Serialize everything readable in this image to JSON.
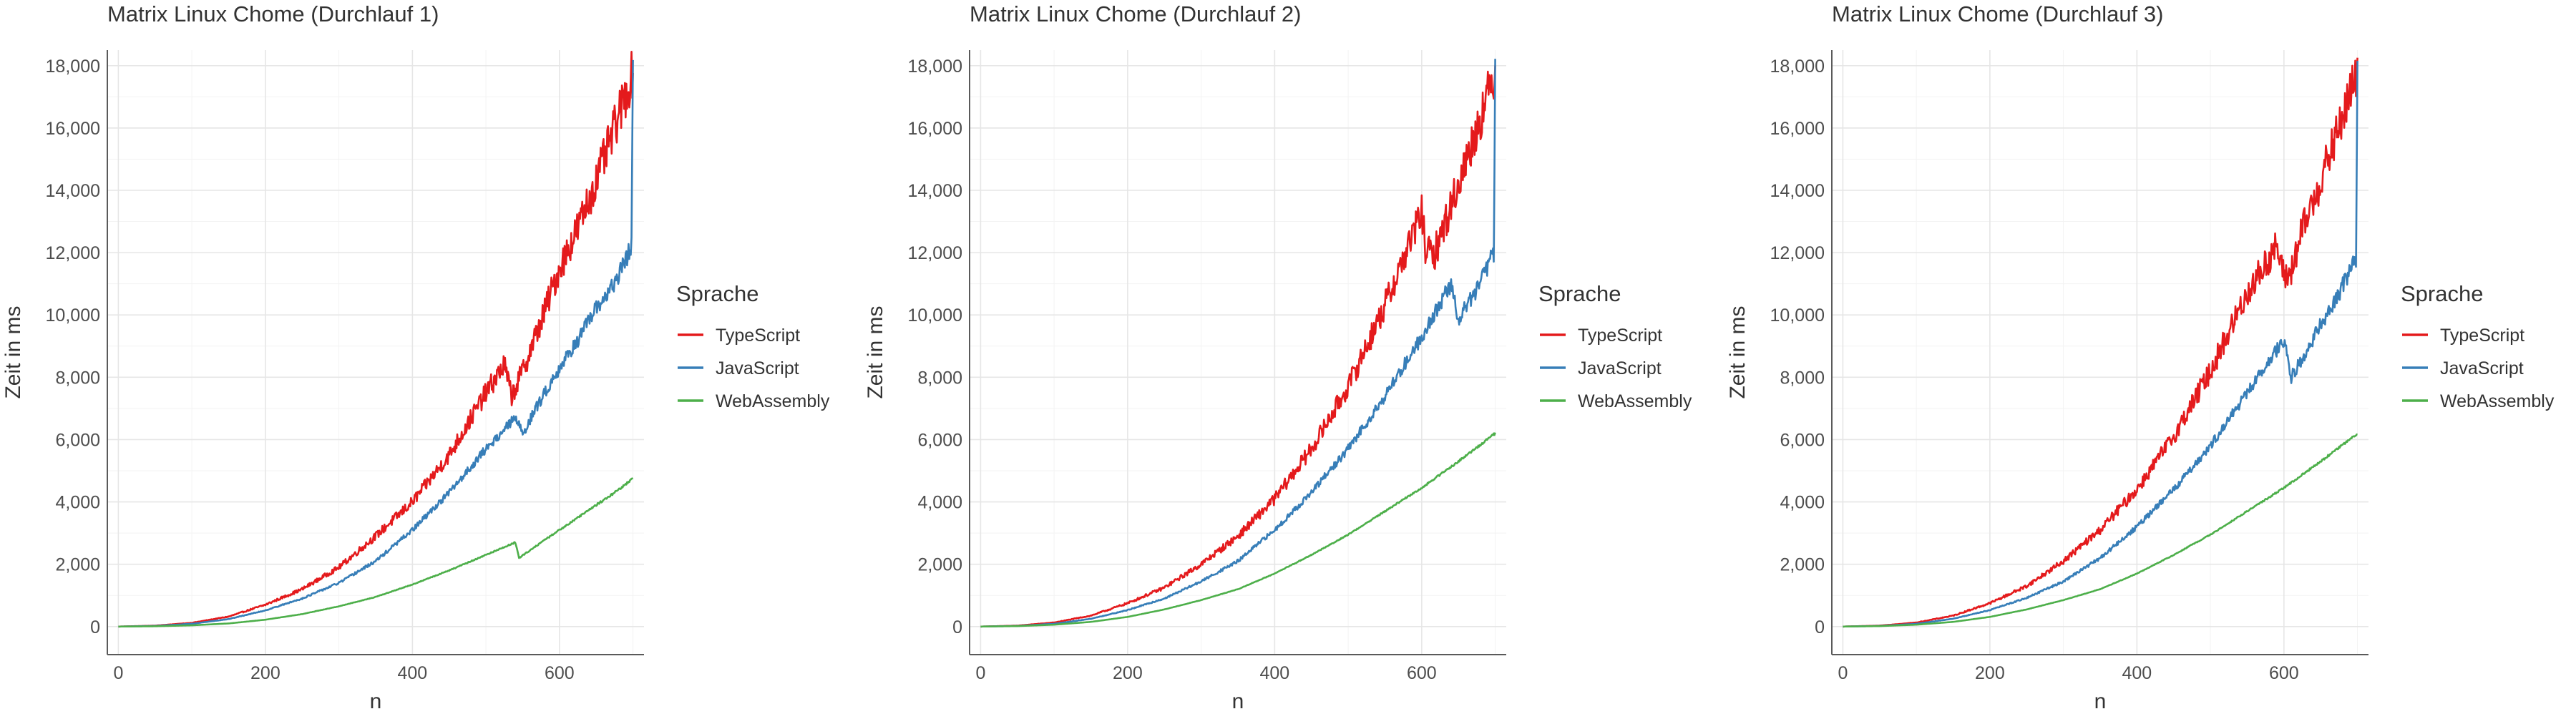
{
  "chart_data": [
    {
      "type": "line",
      "title": "Matrix Linux Chome (Durchlauf 1)",
      "xlabel": "n",
      "ylabel": "Zeit in ms",
      "xlim": [
        -15,
        715
      ],
      "ylim": [
        -900,
        18500
      ],
      "x_ticks": [
        0,
        200,
        400,
        600
      ],
      "x_tick_labels": [
        "0",
        "200",
        "400",
        "600"
      ],
      "y_ticks": [
        0,
        2000,
        4000,
        6000,
        8000,
        10000,
        12000,
        14000,
        16000,
        18000
      ],
      "y_tick_labels": [
        "0",
        "2,000",
        "4,000",
        "6,000",
        "8,000",
        "10,000",
        "12,000",
        "14,000",
        "16,000",
        "18,000"
      ],
      "grid": true,
      "legend_title": "Sprache",
      "legend_position": "right",
      "series": [
        {
          "name": "TypeScript",
          "color": "#e41a1c",
          "noise": 0.045,
          "x": [
            0,
            50,
            100,
            150,
            200,
            250,
            300,
            350,
            400,
            450,
            500,
            525,
            535,
            550,
            575,
            600,
            625,
            650,
            675,
            700
          ],
          "y": [
            0,
            30,
            120,
            320,
            700,
            1200,
            1900,
            2900,
            4000,
            5500,
            7500,
            8400,
            7400,
            8200,
            9800,
            11500,
            12800,
            14300,
            16000,
            17800
          ]
        },
        {
          "name": "JavaScript",
          "color": "#377eb8",
          "noise": 0.025,
          "x": [
            0,
            50,
            100,
            150,
            200,
            250,
            300,
            350,
            400,
            450,
            500,
            540,
            550,
            575,
            600,
            625,
            650,
            675,
            698,
            700
          ],
          "y": [
            0,
            20,
            90,
            240,
            520,
            900,
            1400,
            2100,
            3100,
            4300,
            5700,
            6700,
            6200,
            7300,
            8300,
            9200,
            10200,
            11000,
            12200,
            18100
          ]
        },
        {
          "name": "WebAssembly",
          "color": "#4daf4a",
          "noise": 0.008,
          "x": [
            0,
            50,
            100,
            150,
            200,
            250,
            300,
            350,
            400,
            450,
            500,
            540,
            545,
            575,
            600,
            625,
            650,
            675,
            700
          ],
          "y": [
            0,
            10,
            40,
            100,
            220,
            400,
            650,
            950,
            1350,
            1800,
            2300,
            2700,
            2200,
            2700,
            3100,
            3500,
            3900,
            4300,
            4750
          ]
        }
      ]
    },
    {
      "type": "line",
      "title": "Matrix Linux Chome (Durchlauf 2)",
      "xlabel": "n",
      "ylabel": "Zeit in ms",
      "xlim": [
        -15,
        715
      ],
      "ylim": [
        -900,
        18500
      ],
      "x_ticks": [
        0,
        200,
        400,
        600
      ],
      "x_tick_labels": [
        "0",
        "200",
        "400",
        "600"
      ],
      "y_ticks": [
        0,
        2000,
        4000,
        6000,
        8000,
        10000,
        12000,
        14000,
        16000,
        18000
      ],
      "y_tick_labels": [
        "0",
        "2,000",
        "4,000",
        "6,000",
        "8,000",
        "10,000",
        "12,000",
        "14,000",
        "16,000",
        "18,000"
      ],
      "grid": true,
      "legend_title": "Sprache",
      "legend_position": "right",
      "series": [
        {
          "name": "TypeScript",
          "color": "#e41a1c",
          "noise": 0.045,
          "x": [
            0,
            50,
            100,
            150,
            200,
            250,
            300,
            350,
            400,
            450,
            500,
            550,
            600,
            605,
            615,
            625,
            650,
            675,
            700
          ],
          "y": [
            0,
            30,
            130,
            350,
            750,
            1250,
            2000,
            2900,
            4100,
            5700,
            7700,
            10300,
            13300,
            12200,
            11800,
            12500,
            14200,
            16000,
            17800
          ]
        },
        {
          "name": "JavaScript",
          "color": "#377eb8",
          "noise": 0.025,
          "x": [
            0,
            50,
            100,
            150,
            200,
            250,
            300,
            350,
            400,
            450,
            500,
            550,
            600,
            640,
            650,
            660,
            675,
            698,
            700
          ],
          "y": [
            0,
            20,
            90,
            250,
            530,
            900,
            1450,
            2100,
            3100,
            4300,
            5700,
            7400,
            9300,
            11000,
            9800,
            10300,
            10800,
            12000,
            18000
          ]
        },
        {
          "name": "WebAssembly",
          "color": "#4daf4a",
          "noise": 0.006,
          "x": [
            0,
            50,
            100,
            150,
            200,
            250,
            300,
            350,
            400,
            450,
            500,
            550,
            600,
            650,
            700
          ],
          "y": [
            0,
            15,
            60,
            150,
            310,
            550,
            850,
            1200,
            1700,
            2300,
            2950,
            3700,
            4450,
            5300,
            6200
          ]
        }
      ]
    },
    {
      "type": "line",
      "title": "Matrix Linux Chome (Durchlauf 3)",
      "xlabel": "n",
      "ylabel": "Zeit in ms",
      "xlim": [
        -15,
        715
      ],
      "ylim": [
        -900,
        18500
      ],
      "x_ticks": [
        0,
        200,
        400,
        600
      ],
      "x_tick_labels": [
        "0",
        "200",
        "400",
        "600"
      ],
      "y_ticks": [
        0,
        2000,
        4000,
        6000,
        8000,
        10000,
        12000,
        14000,
        16000,
        18000
      ],
      "y_tick_labels": [
        "0",
        "2,000",
        "4,000",
        "6,000",
        "8,000",
        "10,000",
        "12,000",
        "14,000",
        "16,000",
        "18,000"
      ],
      "grid": true,
      "legend_title": "Sprache",
      "legend_position": "right",
      "series": [
        {
          "name": "TypeScript",
          "color": "#e41a1c",
          "noise": 0.045,
          "x": [
            0,
            50,
            100,
            150,
            200,
            250,
            300,
            350,
            400,
            450,
            500,
            550,
            590,
            600,
            610,
            625,
            650,
            675,
            700
          ],
          "y": [
            0,
            30,
            130,
            350,
            750,
            1300,
            2100,
            3100,
            4400,
            6100,
            8200,
            10700,
            12200,
            11200,
            11400,
            12700,
            14300,
            16000,
            17800
          ]
        },
        {
          "name": "JavaScript",
          "color": "#377eb8",
          "noise": 0.025,
          "x": [
            0,
            50,
            100,
            150,
            200,
            250,
            300,
            350,
            400,
            450,
            500,
            550,
            600,
            610,
            625,
            650,
            675,
            698,
            700
          ],
          "y": [
            0,
            20,
            90,
            250,
            530,
            920,
            1450,
            2200,
            3200,
            4400,
            5800,
            7500,
            9200,
            8000,
            8600,
            9700,
            10700,
            11800,
            17800
          ]
        },
        {
          "name": "WebAssembly",
          "color": "#4daf4a",
          "noise": 0.006,
          "x": [
            0,
            50,
            100,
            150,
            200,
            250,
            300,
            350,
            400,
            450,
            500,
            550,
            600,
            650,
            700
          ],
          "y": [
            0,
            15,
            60,
            150,
            310,
            550,
            850,
            1200,
            1700,
            2300,
            2950,
            3700,
            4450,
            5300,
            6200
          ]
        }
      ]
    }
  ]
}
